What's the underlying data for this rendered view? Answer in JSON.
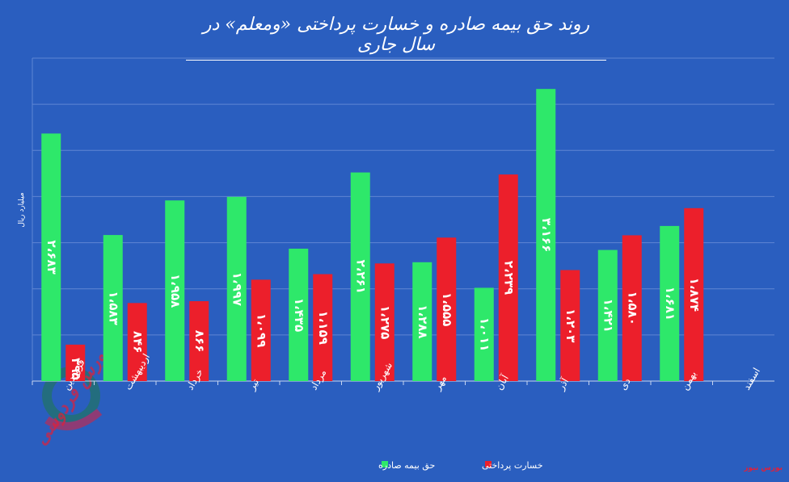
{
  "title": "روند حق بیمه صادره و خسارت پرداختی «ومعلم» در سال جاری",
  "unit_label": "میلیارد ریال",
  "watermark_text": "بورس فردوسی",
  "source_tag": "بورس نیوز",
  "colors": {
    "background": "#2a5ebf",
    "premium": "#2ee86a",
    "claims": "#ec1f2b",
    "grid": "#5f86d3",
    "text": "#ffffff"
  },
  "chart_data": {
    "type": "bar",
    "categories": [
      "فروردین",
      "اردیبهشت",
      "خرداد",
      "تیر",
      "مرداد",
      "شهریور",
      "مهر",
      "آبان",
      "آذر",
      "دی",
      "بهمن",
      "اسفند"
    ],
    "series": [
      {
        "name": "حق بیمه صادره",
        "color": "#2ee86a",
        "values": [
          2683,
          1583,
          1958,
          1997,
          1435,
          2261,
          1288,
          1011,
          3166,
          1421,
          1681,
          null
        ],
        "labels": [
          "۲،۶۸۳",
          "۱،۵۸۳",
          "۱،۹۵۸",
          "۱،۹۹۷",
          "۱،۴۳۵",
          "۲،۲۶۱",
          "۱،۲۸۸",
          "۱،۰۱۱",
          "۳،۱۶۶",
          "۱،۴۲۱",
          "۱،۶۸۱",
          ""
        ]
      },
      {
        "name": "خسارت پرداختی",
        "color": "#ec1f2b",
        "values": [
          395,
          846,
          866,
          1099,
          1159,
          1275,
          1555,
          2239,
          1203,
          1580,
          1874,
          null
        ],
        "labels": [
          "۳۹۵",
          "۸۴۶",
          "۸۶۶",
          "۱،۰۹۹",
          "۱،۱۵۹",
          "۱،۲۷۵",
          "۱،۵۵۵",
          "۲،۲۳۹",
          "۱،۲۰۳",
          "۱،۵۸۰",
          "۱،۸۷۴",
          ""
        ]
      }
    ],
    "ylim": [
      0,
      3500
    ],
    "grid": true,
    "legend_position": "bottom"
  }
}
